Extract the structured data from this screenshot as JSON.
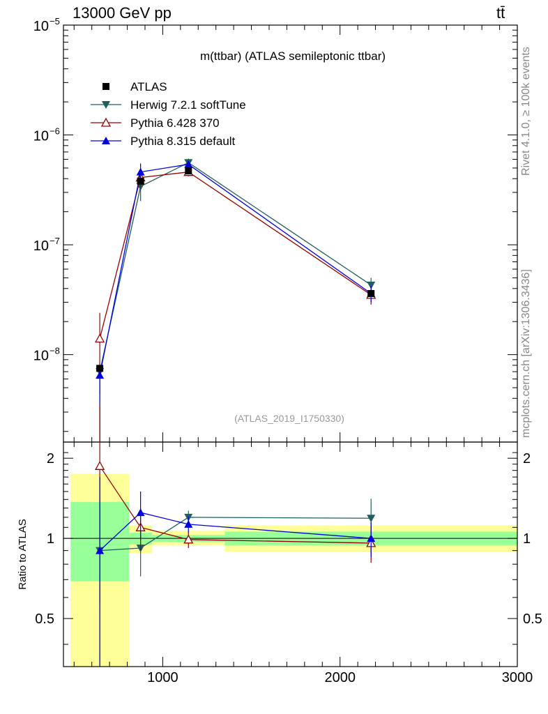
{
  "header": {
    "energy_label": "13000 GeV pp",
    "process_label": "tt̄"
  },
  "side_labels": {
    "rivet": "Rivet 4.1.0, ≥ 100k events",
    "source": "mcplots.cern.ch [arXiv:1306.3436]"
  },
  "chart_data": {
    "type": "line",
    "title": "m(ttbar) (ATLAS semileptonic ttbar)",
    "analysis_tag": "(ATLAS_2019_I1750330)",
    "xlabel": "",
    "ylabel_ratio": "Ratio to ATLAS",
    "xlim": [
      440,
      3000
    ],
    "ylim_main": [
      1.6e-09,
      1e-05
    ],
    "ylim_ratio": [
      0.33,
      2.3
    ],
    "x_ticks": [
      1000,
      2000,
      3000
    ],
    "main_tick_labels": [
      {
        "base": "10",
        "exp": "−5",
        "value": 1e-05
      },
      {
        "base": "10",
        "exp": "−6",
        "value": 1e-06
      },
      {
        "base": "10",
        "exp": "−7",
        "value": 1e-07
      },
      {
        "base": "10",
        "exp": "−8",
        "value": 1e-08
      }
    ],
    "ratio_tick_labels": [
      {
        "label": "2",
        "value": 2
      },
      {
        "label": "1",
        "value": 1
      },
      {
        "label": "0.5",
        "value": 0.5
      }
    ],
    "bin_edges": [
      480,
      810,
      940,
      1350,
      3000
    ],
    "series": [
      {
        "name": "ATLAS",
        "color": "#000000",
        "marker": "square",
        "x": [
          645,
          875,
          1145,
          2175
        ],
        "y": [
          7.5e-09,
          3.8e-07,
          4.7e-07,
          3.6e-08
        ]
      },
      {
        "name": "Herwig 7.2.1 softTune",
        "color": "#1f5f5f",
        "marker": "triangle-down",
        "x": [
          645,
          875,
          1145,
          2175
        ],
        "y": [
          7e-09,
          3.4e-07,
          5.6e-07,
          4.3e-08
        ],
        "yerr_lo": [
          6.9e-09,
          9e-08,
          5e-08,
          7e-09
        ],
        "yerr_hi": [
          0,
          9e-08,
          5e-08,
          7e-09
        ],
        "ratio": [
          0.9,
          0.92,
          1.2,
          1.19
        ],
        "ratio_err": [
          0.8,
          0.2,
          0.07,
          0.22
        ]
      },
      {
        "name": "Pythia 6.428 370",
        "color": "#990000",
        "marker": "triangle-up-open",
        "x": [
          645,
          875,
          1145,
          2175
        ],
        "y": [
          1.4e-08,
          4.1e-07,
          4.6e-07,
          3.5e-08
        ],
        "yerr_lo": [
          9.7e-09,
          8e-08,
          4e-08,
          6.5e-09
        ],
        "yerr_hi": [
          1e-08,
          8e-08,
          4e-08,
          6.5e-09
        ],
        "ratio": [
          1.87,
          1.1,
          0.99,
          0.96
        ],
        "ratio_err": [
          1.3,
          0.2,
          0.07,
          0.15
        ]
      },
      {
        "name": "Pythia 8.315 default",
        "color": "#0000dd",
        "marker": "triangle-up",
        "x": [
          645,
          875,
          1145,
          2175
        ],
        "y": [
          6.5e-09,
          4.6e-07,
          5.4e-07,
          3.6e-08
        ],
        "yerr_lo": [
          6.4e-09,
          9e-08,
          4e-08,
          6e-09
        ],
        "yerr_hi": [
          0,
          9e-08,
          4e-08,
          6e-09
        ],
        "ratio": [
          0.9,
          1.25,
          1.13,
          1.0
        ],
        "ratio_err": [
          0.8,
          0.25,
          0.08,
          0.15
        ]
      }
    ],
    "ratio_band_inner": [
      {
        "x0": 480,
        "x1": 810,
        "lo": 0.69,
        "hi": 1.37
      },
      {
        "x0": 810,
        "x1": 940,
        "lo": 0.95,
        "hi": 1.05
      },
      {
        "x0": 940,
        "x1": 1350,
        "lo": 0.97,
        "hi": 1.03
      },
      {
        "x0": 1350,
        "x1": 3000,
        "lo": 0.94,
        "hi": 1.06
      }
    ],
    "ratio_band_outer": [
      {
        "x0": 480,
        "x1": 810,
        "lo": 0.33,
        "hi": 1.75
      },
      {
        "x0": 810,
        "x1": 940,
        "lo": 0.88,
        "hi": 1.12
      },
      {
        "x0": 940,
        "x1": 1350,
        "lo": 0.94,
        "hi": 1.07
      },
      {
        "x0": 1350,
        "x1": 3000,
        "lo": 0.89,
        "hi": 1.12
      }
    ]
  }
}
